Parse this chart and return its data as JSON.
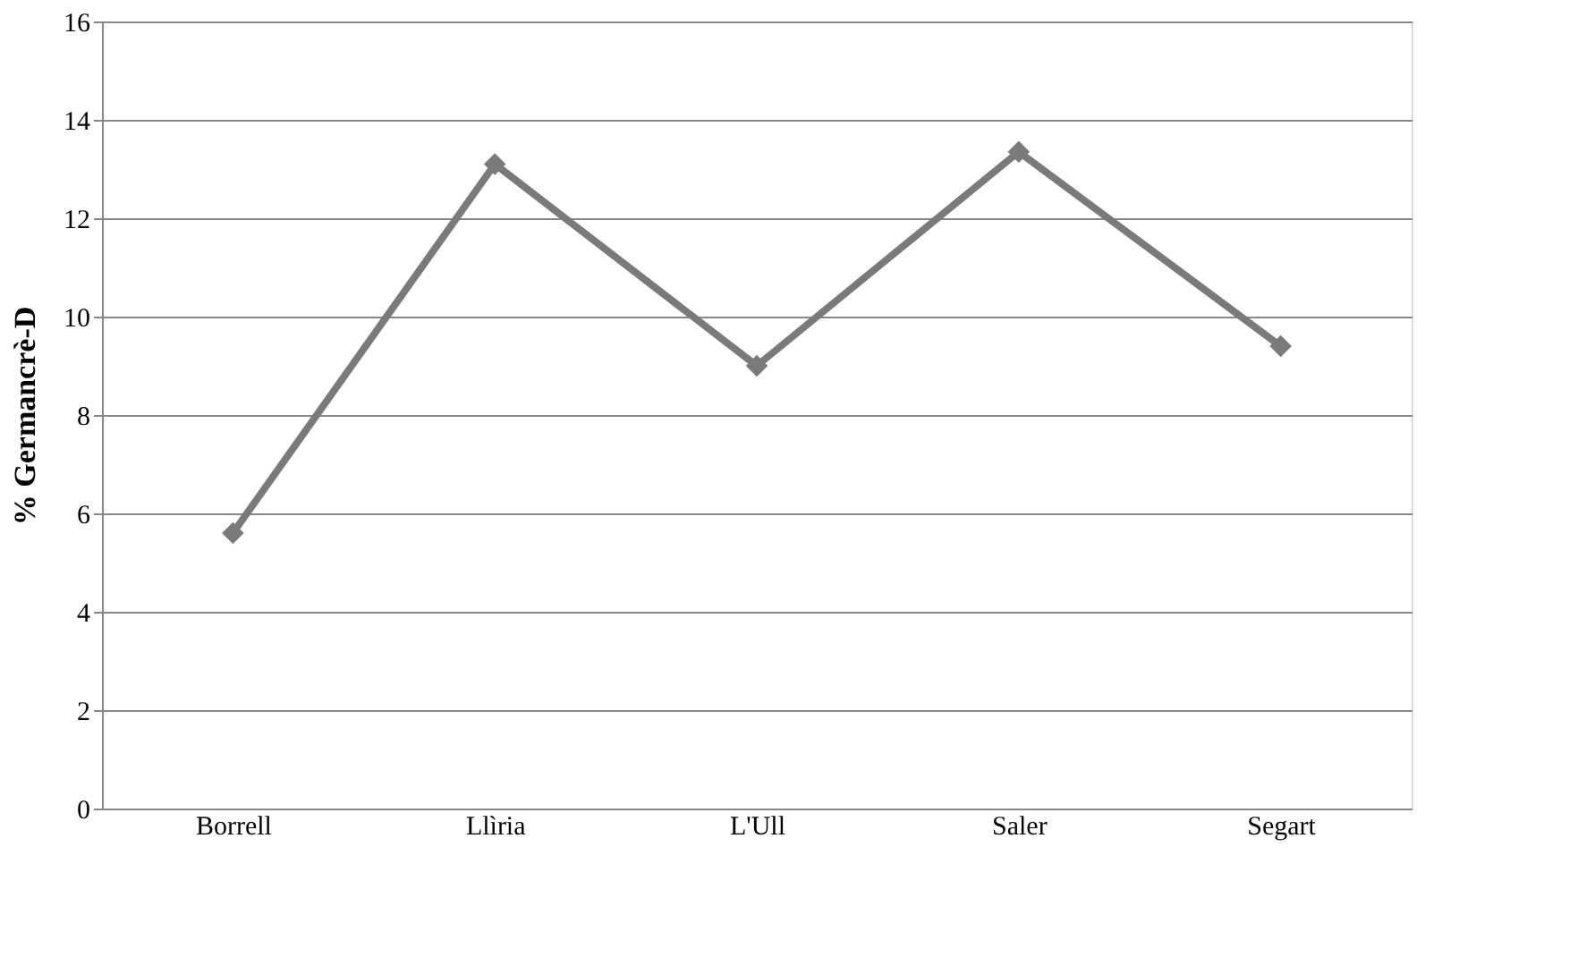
{
  "chart_data": {
    "type": "line",
    "ylabel": "% Germancrè-D",
    "categories": [
      "Borrell",
      "Llìria",
      "L'Ull",
      "Saler",
      "Segart"
    ],
    "series": [
      {
        "color": "#7a7a7a",
        "values": [
          5.6,
          13.1,
          9.0,
          13.35,
          9.4
        ]
      }
    ],
    "ylim": [
      0,
      16
    ],
    "yticks": [
      0,
      2,
      4,
      6,
      8,
      10,
      12,
      14,
      16
    ],
    "grid": "y",
    "marker": "diamond",
    "line_style": "solid"
  }
}
